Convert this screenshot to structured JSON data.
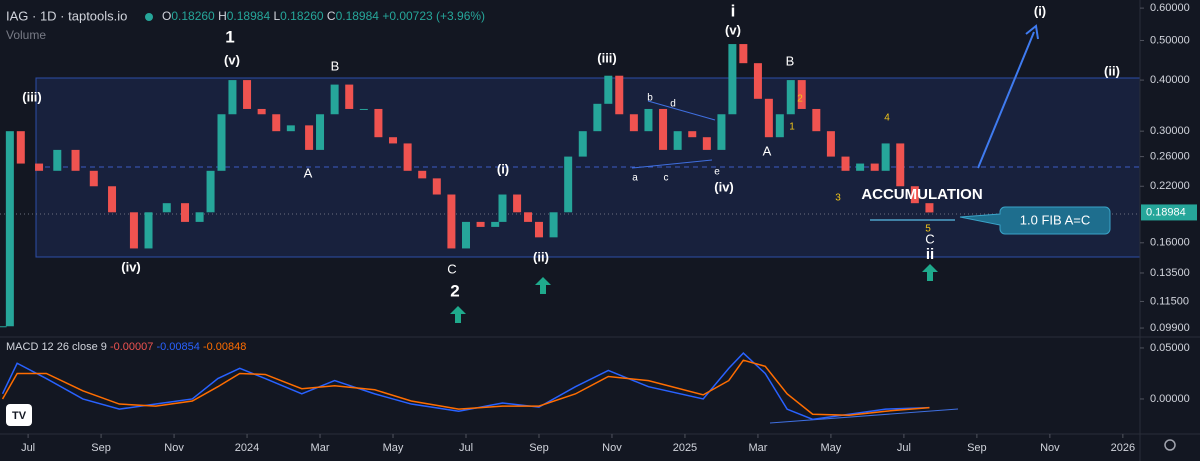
{
  "chart_data": {
    "type": "candlestick",
    "header": {
      "symbol": "IAG · 1D · taptools.io",
      "ohlc": [
        {
          "key": "O",
          "value": "0.18260"
        },
        {
          "key": "H",
          "value": "0.18984"
        },
        {
          "key": "L",
          "value": "0.18260"
        },
        {
          "key": "C",
          "value": "0.18984"
        }
      ],
      "change": "+0.00723 (+3.96%)",
      "volume": "Volume"
    },
    "x": [
      -0.7,
      -0.5,
      -0.2,
      0.3,
      0.8,
      1.3,
      1.8,
      2.3,
      2.9,
      3.3,
      3.8,
      4.3,
      4.7,
      5.0,
      5.3,
      5.6,
      6.0,
      6.4,
      6.8,
      7.2,
      7.7,
      8.0,
      8.4,
      8.8,
      9.2,
      9.6,
      10.0,
      10.4,
      10.8,
      11.2,
      11.6,
      12.0,
      12.4,
      12.8,
      13.0,
      13.4,
      13.7,
      14.0,
      14.4,
      14.8,
      15.2,
      15.6,
      15.9,
      16.2,
      16.6,
      17.0,
      17.4,
      17.8,
      18.2,
      18.6,
      19.0,
      19.3,
      19.6,
      20.0,
      20.3,
      20.6,
      20.9,
      21.2,
      21.6,
      22.0,
      22.4,
      22.8,
      23.2,
      23.5,
      23.9,
      24.3,
      24.7
    ],
    "values": [
      0.1,
      0.3,
      0.25,
      0.24,
      0.27,
      0.24,
      0.22,
      0.19,
      0.155,
      0.19,
      0.2,
      0.18,
      0.19,
      0.24,
      0.33,
      0.4,
      0.34,
      0.33,
      0.3,
      0.31,
      0.27,
      0.33,
      0.39,
      0.34,
      0.34,
      0.29,
      0.28,
      0.24,
      0.23,
      0.21,
      0.155,
      0.18,
      0.175,
      0.18,
      0.21,
      0.19,
      0.18,
      0.165,
      0.19,
      0.26,
      0.3,
      0.35,
      0.41,
      0.33,
      0.3,
      0.34,
      0.27,
      0.3,
      0.29,
      0.27,
      0.33,
      0.49,
      0.44,
      0.36,
      0.29,
      0.33,
      0.4,
      0.34,
      0.3,
      0.26,
      0.24,
      0.25,
      0.24,
      0.28,
      0.22,
      0.2,
      0.18984
    ],
    "up_color": "#26a69a",
    "down_color": "#ef5350",
    "log_scale": true,
    "ylim": [
      0.0952,
      0.628
    ],
    "yticks": [
      {
        "value": 0.6,
        "label": "0.60000"
      },
      {
        "value": 0.5,
        "label": "0.50000"
      },
      {
        "value": 0.4,
        "label": "0.40000"
      },
      {
        "value": 0.3,
        "label": "0.30000"
      },
      {
        "value": 0.26,
        "label": "0.26000"
      },
      {
        "value": 0.22,
        "label": "0.22000"
      },
      {
        "value": 0.16,
        "label": "0.16000"
      },
      {
        "value": 0.135,
        "label": "0.13500"
      },
      {
        "value": 0.115,
        "label": "0.11500"
      },
      {
        "value": 0.099,
        "label": "0.09900"
      }
    ],
    "xlim": [
      -0.77,
      30.47
    ],
    "xticks": [
      {
        "value": 0,
        "label": "Jul"
      },
      {
        "value": 2,
        "label": "Sep"
      },
      {
        "value": 4,
        "label": "Nov"
      },
      {
        "value": 6,
        "label": "2024"
      },
      {
        "value": 8,
        "label": "Mar"
      },
      {
        "value": 10,
        "label": "May"
      },
      {
        "value": 12,
        "label": "Jul"
      },
      {
        "value": 14,
        "label": "Sep"
      },
      {
        "value": 16,
        "label": "Nov"
      },
      {
        "value": 18,
        "label": "2025"
      },
      {
        "value": 20,
        "label": "Mar"
      },
      {
        "value": 22,
        "label": "May"
      },
      {
        "value": 24,
        "label": "Jul"
      },
      {
        "value": 26,
        "label": "Sep"
      },
      {
        "value": 28,
        "label": "Nov"
      },
      {
        "value": 30,
        "label": "2026"
      }
    ],
    "annotations": [
      "i",
      "(i)",
      "1",
      "(v)",
      "B",
      "(iii)",
      "(iii)",
      "(ii)",
      "B",
      "(v)",
      "2",
      "1",
      "4",
      "b",
      "d",
      "A",
      "(i)",
      "A",
      "a",
      "c",
      "e",
      "(iv)",
      "ACCUMULATION",
      "3",
      "(iv)",
      "C",
      "2",
      "(ii)",
      "5",
      "C",
      "ii",
      "1.0 FIB A=C"
    ],
    "macd": {
      "title": "MACD 12 26 close 9",
      "histogram_label": "-0.00007",
      "x": [
        -0.7,
        -0.3,
        0.5,
        1.5,
        2.5,
        3.5,
        4.5,
        5.2,
        5.8,
        6.5,
        7.5,
        8.4,
        9.5,
        10.5,
        11.8,
        13.0,
        14.0,
        15.0,
        15.9,
        17.0,
        18.5,
        19.2,
        19.6,
        20.2,
        20.8,
        21.5,
        22.5,
        23.5,
        24.7
      ],
      "series": [
        {
          "value_label": "-0.00854",
          "color": "#2962ff",
          "values": [
            0.005,
            0.035,
            0.02,
            0.0,
            -0.01,
            -0.005,
            0.0,
            0.02,
            0.03,
            0.02,
            0.005,
            0.018,
            0.005,
            -0.005,
            -0.012,
            -0.004,
            -0.008,
            0.012,
            0.028,
            0.012,
            0.0,
            0.03,
            0.045,
            0.025,
            -0.01,
            -0.02,
            -0.015,
            -0.01,
            -0.00854
          ]
        },
        {
          "value_label": "-0.00848",
          "color": "#ff6d00",
          "values": [
            0.0,
            0.025,
            0.025,
            0.008,
            -0.005,
            -0.007,
            -0.002,
            0.012,
            0.025,
            0.024,
            0.01,
            0.013,
            0.009,
            -0.002,
            -0.01,
            -0.007,
            -0.007,
            0.005,
            0.022,
            0.018,
            0.004,
            0.018,
            0.038,
            0.032,
            0.005,
            -0.015,
            -0.016,
            -0.012,
            -0.00848
          ]
        }
      ],
      "ylim": [
        -0.0324,
        0.0578
      ],
      "yticks": [
        {
          "value": 0.05,
          "label": "0.05000"
        },
        {
          "value": 0,
          "label": "0.00000"
        }
      ]
    }
  }
}
